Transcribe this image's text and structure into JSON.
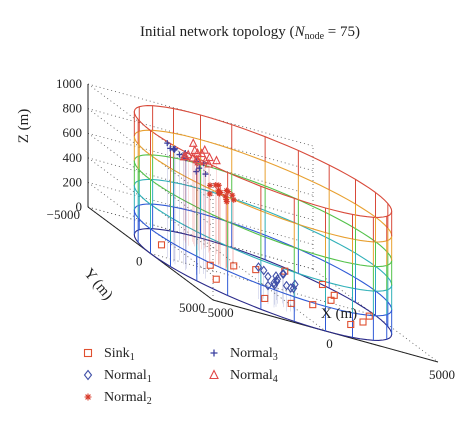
{
  "chart_data": {
    "type": "scatter",
    "projection": "3d",
    "title": "Initial network topology (N_node = 75)",
    "title_parts": {
      "prefix": "Initial network topology (",
      "var": "N",
      "sub": "node",
      "suffix": " = 75)"
    },
    "xlabel": "X (m)",
    "ylabel": "Y (m)",
    "zlabel": "Z (m)",
    "xlim": [
      -5000,
      5000
    ],
    "ylim": [
      -5000,
      5000
    ],
    "zlim": [
      0,
      1000
    ],
    "x_ticks": [
      "−5000",
      "0",
      "5000"
    ],
    "y_ticks": [
      "−5000",
      "0",
      "5000"
    ],
    "z_ticks": [
      "0",
      "200",
      "400",
      "600",
      "800",
      "1000"
    ],
    "x_tick_values": [
      -5000,
      0,
      5000
    ],
    "y_tick_values": [
      -5000,
      0,
      5000
    ],
    "z_tick_values": [
      0,
      200,
      400,
      600,
      800,
      1000
    ],
    "grid": true,
    "legend_position": "bottom",
    "cylinder": {
      "radius": 5000,
      "levels": [
        0,
        200,
        400,
        600,
        800,
        1000
      ]
    },
    "series": [
      {
        "name": "Sink",
        "name_sub": "1",
        "marker": "square",
        "color": "#e05030",
        "points": [
          [
            4200,
            -2800,
            0
          ],
          [
            4000,
            -1500,
            0
          ],
          [
            3300,
            -500,
            0
          ],
          [
            1600,
            1100,
            0
          ],
          [
            200,
            1900,
            0
          ],
          [
            -1200,
            2300,
            0
          ],
          [
            -2800,
            1300,
            0
          ],
          [
            -1900,
            -800,
            0
          ],
          [
            -300,
            -1800,
            0
          ],
          [
            900,
            -2200,
            0
          ],
          [
            2800,
            -3300,
            0
          ],
          [
            -3400,
            -2000,
            0
          ],
          [
            2400,
            2700,
            0
          ],
          [
            4500,
            400,
            0
          ],
          [
            3500,
            1700,
            0
          ]
        ]
      },
      {
        "name": "Normal",
        "name_sub": "1",
        "marker": "diamond",
        "color": "#4050a8",
        "points": [
          [
            -800,
            2600,
            200
          ],
          [
            -1100,
            2900,
            160
          ],
          [
            -400,
            2300,
            240
          ],
          [
            -1500,
            3100,
            150
          ],
          [
            -600,
            3300,
            190
          ],
          [
            -1300,
            2400,
            230
          ],
          [
            -200,
            2800,
            170
          ],
          [
            -900,
            3500,
            210
          ],
          [
            -1700,
            2700,
            260
          ],
          [
            -500,
            2000,
            150
          ],
          [
            -1200,
            3200,
            250
          ],
          [
            -300,
            3100,
            220
          ],
          [
            -1000,
            2200,
            180
          ],
          [
            -1400,
            3400,
            200
          ],
          [
            -700,
            2900,
            270
          ]
        ]
      },
      {
        "name": "Normal",
        "name_sub": "2",
        "marker": "asterisk",
        "color": "#d83a2a",
        "points": [
          [
            -1400,
            -1000,
            600
          ],
          [
            -1100,
            -800,
            640
          ],
          [
            -1700,
            -1200,
            560
          ],
          [
            -900,
            -1300,
            620
          ],
          [
            -1300,
            -600,
            580
          ],
          [
            -1600,
            -900,
            660
          ],
          [
            -1000,
            -1100,
            540
          ],
          [
            -1200,
            -1400,
            600
          ],
          [
            -1500,
            -700,
            620
          ],
          [
            -800,
            -900,
            580
          ],
          [
            -1800,
            -1000,
            640
          ],
          [
            -1100,
            -1500,
            570
          ],
          [
            -1400,
            -500,
            610
          ],
          [
            -700,
            -1200,
            600
          ],
          [
            -1300,
            -1200,
            650
          ]
        ]
      },
      {
        "name": "Normal",
        "name_sub": "3",
        "marker": "plus",
        "color": "#3a40a0",
        "points": [
          [
            -3900,
            900,
            900
          ],
          [
            -3500,
            1200,
            860
          ],
          [
            -4200,
            400,
            920
          ],
          [
            -3300,
            600,
            880
          ],
          [
            -3800,
            1500,
            840
          ],
          [
            -4000,
            100,
            900
          ],
          [
            -3600,
            -200,
            860
          ],
          [
            -4300,
            700,
            940
          ],
          [
            -3200,
            1000,
            900
          ],
          [
            -3700,
            300,
            870
          ],
          [
            -4100,
            1200,
            910
          ],
          [
            -3400,
            -100,
            890
          ],
          [
            -3900,
            -400,
            880
          ],
          [
            -3500,
            1700,
            850
          ],
          [
            -4200,
            -100,
            930
          ]
        ]
      },
      {
        "name": "Normal",
        "name_sub": "4",
        "marker": "triangle",
        "color": "#e04848",
        "points": [
          [
            -1000,
            -3500,
            700
          ],
          [
            -600,
            -3200,
            760
          ],
          [
            -1400,
            -3800,
            680
          ],
          [
            -800,
            -2900,
            720
          ],
          [
            -1200,
            -3300,
            780
          ],
          [
            -500,
            -3700,
            700
          ],
          [
            -1600,
            -3100,
            740
          ],
          [
            -900,
            -4000,
            680
          ],
          [
            -700,
            -3400,
            800
          ],
          [
            -1300,
            -2800,
            720
          ],
          [
            -400,
            -3000,
            760
          ],
          [
            -1100,
            -3600,
            820
          ],
          [
            -1500,
            -3500,
            700
          ],
          [
            -800,
            -3800,
            740
          ],
          [
            -1000,
            -3100,
            780
          ]
        ]
      }
    ]
  }
}
